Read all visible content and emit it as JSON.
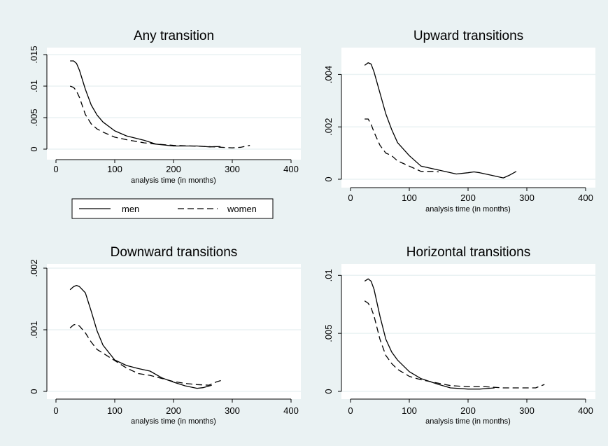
{
  "chart_data": [
    {
      "type": "line",
      "title": "Any transition",
      "xlabel": "analysis time (in months)",
      "ylabel": "",
      "xlim": [
        0,
        400
      ],
      "ylim": [
        0,
        0.015
      ],
      "xticks": [
        0,
        100,
        200,
        300,
        400
      ],
      "yticks": [
        0,
        0.005,
        0.01,
        0.015
      ],
      "ytick_labels": [
        "0",
        ".005",
        ".01",
        ".015"
      ],
      "grid": true,
      "series": [
        {
          "name": "men",
          "style": "solid",
          "x": [
            24,
            30,
            35,
            40,
            50,
            60,
            70,
            80,
            100,
            120,
            150,
            170,
            200,
            220,
            240,
            255,
            262,
            270,
            280
          ],
          "y": [
            0.014,
            0.014,
            0.0136,
            0.0125,
            0.0095,
            0.007,
            0.0054,
            0.0043,
            0.0029,
            0.0021,
            0.0014,
            0.0008,
            0.0005,
            0.0005,
            0.0005,
            0.0004,
            0.00035,
            0.0004,
            0.0004
          ]
        },
        {
          "name": "women",
          "style": "dashed",
          "x": [
            24,
            30,
            35,
            40,
            50,
            60,
            70,
            80,
            100,
            120,
            150,
            170,
            200,
            230,
            260,
            280,
            300,
            315,
            330
          ],
          "y": [
            0.01,
            0.0098,
            0.0092,
            0.0082,
            0.0055,
            0.004,
            0.0032,
            0.0027,
            0.0019,
            0.0015,
            0.001,
            0.0008,
            0.0006,
            0.0005,
            0.0004,
            0.0003,
            0.0002,
            0.0003,
            0.0006
          ]
        }
      ]
    },
    {
      "type": "line",
      "title": "Upward transitions",
      "xlabel": "analysis time (in months)",
      "ylabel": "",
      "xlim": [
        0,
        400
      ],
      "ylim": [
        0,
        0.0046
      ],
      "xticks": [
        0,
        100,
        200,
        300,
        400
      ],
      "yticks": [
        0,
        0.002,
        0.004
      ],
      "ytick_labels": [
        "0",
        ".002",
        ".004"
      ],
      "grid": true,
      "series": [
        {
          "name": "men",
          "style": "solid",
          "x": [
            24,
            30,
            35,
            40,
            50,
            60,
            70,
            80,
            100,
            120,
            140,
            160,
            180,
            200,
            210,
            220,
            240,
            260,
            270,
            282
          ],
          "y": [
            0.00435,
            0.00445,
            0.0044,
            0.0041,
            0.0033,
            0.0025,
            0.0019,
            0.0014,
            0.0009,
            0.0005,
            0.0004,
            0.0003,
            0.0002,
            0.00025,
            0.00028,
            0.00025,
            0.00015,
            5e-05,
            0.00015,
            0.0003
          ]
        },
        {
          "name": "women",
          "style": "dashed",
          "x": [
            24,
            30,
            35,
            40,
            50,
            60,
            70,
            80,
            100,
            120,
            140,
            150
          ],
          "y": [
            0.0023,
            0.0023,
            0.0021,
            0.0018,
            0.0013,
            0.001,
            0.0009,
            0.0007,
            0.0005,
            0.0003,
            0.0003,
            0.00028
          ]
        }
      ]
    },
    {
      "type": "line",
      "title": "Downward transitions",
      "xlabel": "analysis time (in months)",
      "ylabel": "",
      "xlim": [
        0,
        400
      ],
      "ylim": [
        0,
        0.002
      ],
      "xticks": [
        0,
        100,
        200,
        300,
        400
      ],
      "yticks": [
        0,
        0.001,
        0.002
      ],
      "ytick_labels": [
        "0",
        ".001",
        ".002"
      ],
      "grid": true,
      "series": [
        {
          "name": "men",
          "style": "solid",
          "x": [
            24,
            30,
            35,
            40,
            50,
            60,
            70,
            80,
            100,
            120,
            140,
            160,
            180,
            200,
            220,
            240,
            250,
            265
          ],
          "y": [
            0.00165,
            0.0017,
            0.00172,
            0.0017,
            0.0016,
            0.0013,
            0.00098,
            0.00075,
            0.00051,
            0.00042,
            0.00037,
            0.00033,
            0.00022,
            0.00015,
            9e-05,
            5e-05,
            6e-05,
            0.0001
          ]
        },
        {
          "name": "women",
          "style": "dashed",
          "x": [
            24,
            30,
            35,
            40,
            50,
            60,
            70,
            80,
            100,
            120,
            140,
            160,
            180,
            200,
            220,
            240,
            260,
            272,
            285
          ],
          "y": [
            0.00103,
            0.00108,
            0.00109,
            0.00106,
            0.00095,
            0.0008,
            0.00068,
            0.00062,
            0.0005,
            0.00038,
            0.00029,
            0.00026,
            0.00021,
            0.00016,
            0.00013,
            0.00011,
            0.0001,
            0.00015,
            0.00019
          ]
        }
      ]
    },
    {
      "type": "line",
      "title": "Horizontal transitions",
      "xlabel": "analysis time (in months)",
      "ylabel": "",
      "xlim": [
        0,
        400
      ],
      "ylim": [
        0,
        0.0105
      ],
      "xticks": [
        0,
        100,
        200,
        300,
        400
      ],
      "yticks": [
        0,
        0.005,
        0.01
      ],
      "ytick_labels": [
        "0",
        ".005",
        ".01"
      ],
      "grid": true,
      "series": [
        {
          "name": "men",
          "style": "solid",
          "x": [
            24,
            30,
            35,
            40,
            50,
            60,
            70,
            80,
            100,
            120,
            150,
            170,
            200,
            220,
            245
          ],
          "y": [
            0.0095,
            0.0097,
            0.0095,
            0.0088,
            0.0065,
            0.0045,
            0.0034,
            0.0027,
            0.0017,
            0.0011,
            0.0006,
            0.0003,
            0.0002,
            0.0002,
            0.0003
          ]
        },
        {
          "name": "women",
          "style": "dashed",
          "x": [
            24,
            30,
            35,
            40,
            50,
            60,
            70,
            80,
            100,
            120,
            150,
            170,
            200,
            230,
            260,
            280,
            300,
            315,
            330
          ],
          "y": [
            0.0078,
            0.0076,
            0.0072,
            0.0065,
            0.0045,
            0.0031,
            0.0024,
            0.0019,
            0.0013,
            0.001,
            0.0007,
            0.0005,
            0.0004,
            0.0004,
            0.0003,
            0.0003,
            0.0003,
            0.0003,
            0.0006
          ]
        }
      ]
    }
  ],
  "legend": {
    "items": [
      {
        "label": "men",
        "style": "solid"
      },
      {
        "label": "women",
        "style": "dashed"
      }
    ],
    "placement": "below-first-panel"
  },
  "colors": {
    "background": "#eaf2f3",
    "plot_background": "#ffffff",
    "line": "#000000",
    "grid": "#eaf2f3"
  }
}
